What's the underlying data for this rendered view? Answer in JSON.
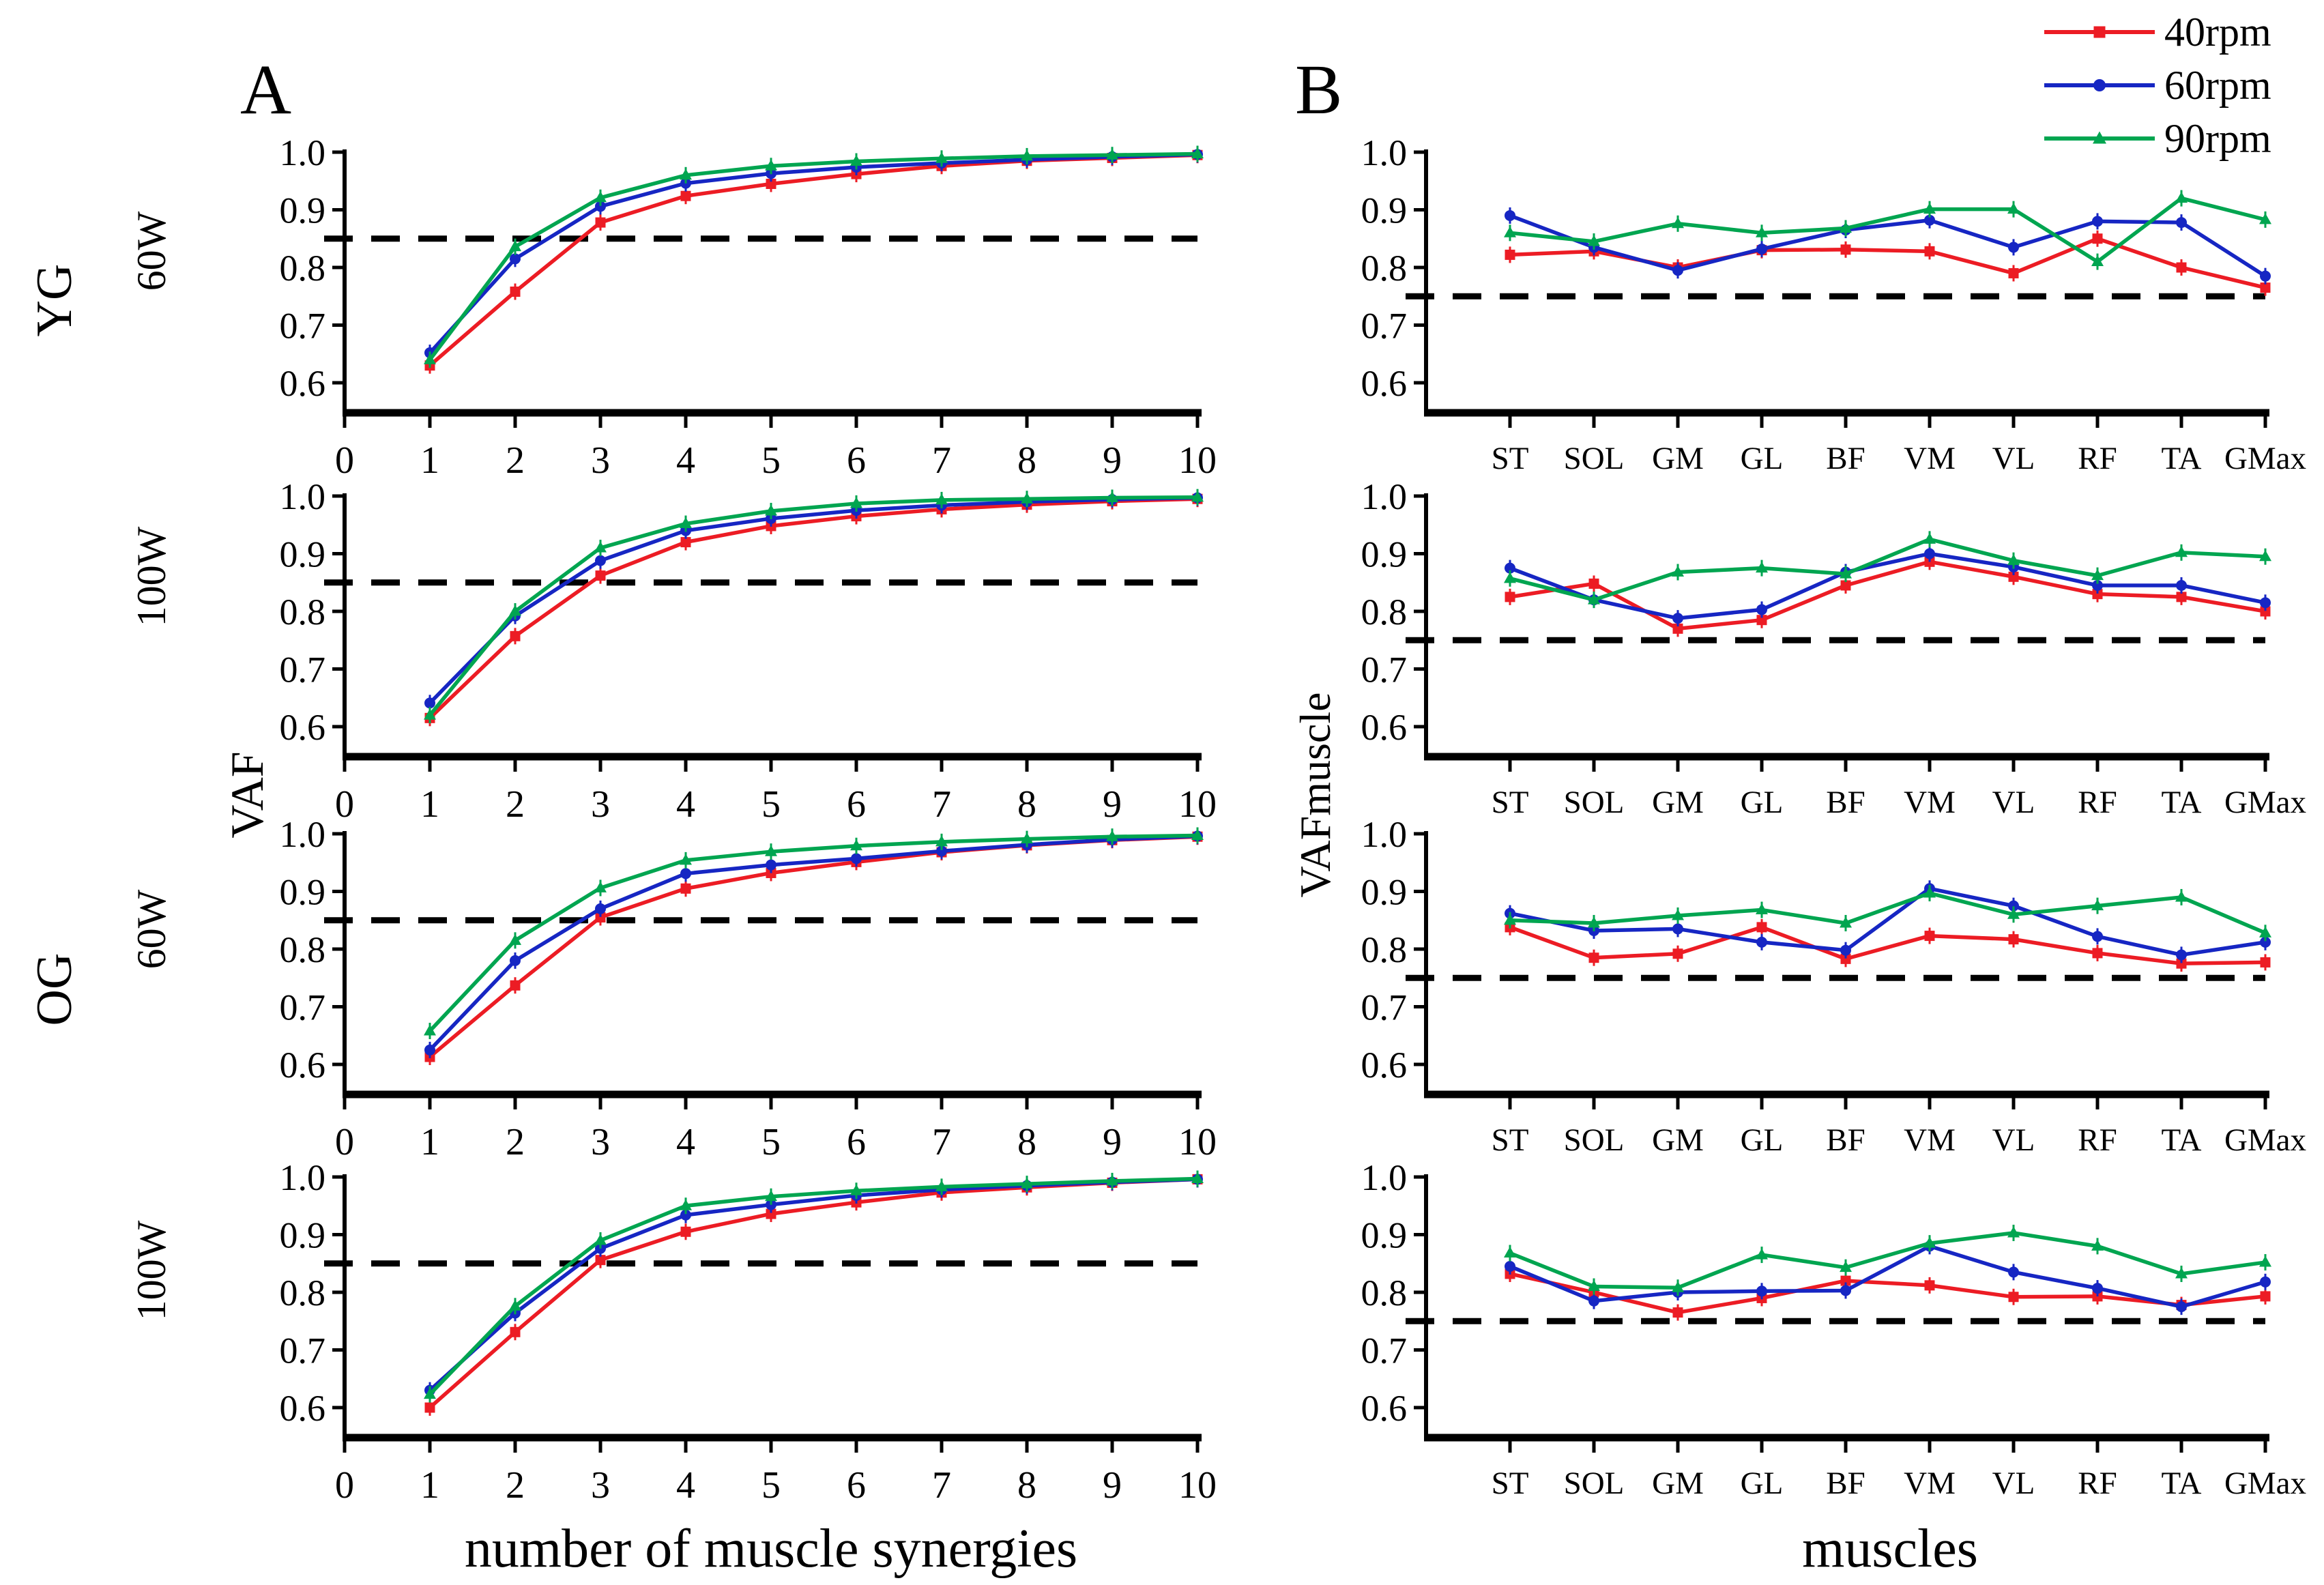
{
  "figure": {
    "panel_a_letter": "A",
    "panel_b_letter": "B",
    "ylabel_a": "VAF",
    "ylabel_b": "VAFmuscle",
    "xlabel_a": "number of muscle synergies",
    "xlabel_b": "muscles",
    "group_labels": [
      "YG",
      "OG"
    ],
    "row_power_labels": [
      "60W",
      "100W",
      "60W",
      "100W"
    ]
  },
  "legend": {
    "items": [
      {
        "label": "40rpm",
        "color": "#ec1c24",
        "marker": "square"
      },
      {
        "label": "60rpm",
        "color": "#1626c3",
        "marker": "circle"
      },
      {
        "label": "90rpm",
        "color": "#00a550",
        "marker": "triangle"
      }
    ]
  },
  "axis": {
    "y_tick_labels": [
      "1.0",
      "0.9",
      "0.8",
      "0.7",
      "0.6"
    ],
    "y_tick_values": [
      1.0,
      0.9,
      0.8,
      0.7,
      0.6
    ]
  },
  "chart_data": [
    {
      "id": "A-YG-60W",
      "panel": "A",
      "row": 0,
      "type": "line",
      "group": "YG",
      "power": "60W",
      "threshold": 0.85,
      "x_tick_labels": [
        "0",
        "1",
        "2",
        "3",
        "4",
        "5",
        "6",
        "7",
        "8",
        "9",
        "10"
      ],
      "xlabel": "number of muscle synergies",
      "ylabel": "VAF",
      "ylim": [
        0.55,
        1.0
      ],
      "series": [
        {
          "name": "40rpm",
          "color": "#ec1c24",
          "marker": "square",
          "values": [
            0.63,
            0.758,
            0.878,
            0.924,
            0.945,
            0.962,
            0.976,
            0.985,
            0.99,
            0.995
          ]
        },
        {
          "name": "60rpm",
          "color": "#1626c3",
          "marker": "circle",
          "values": [
            0.652,
            0.815,
            0.906,
            0.946,
            0.963,
            0.974,
            0.981,
            0.987,
            0.992,
            0.996
          ]
        },
        {
          "name": "90rpm",
          "color": "#00a550",
          "marker": "triangle",
          "values": [
            0.64,
            0.836,
            0.921,
            0.96,
            0.976,
            0.984,
            0.989,
            0.993,
            0.995,
            0.997
          ]
        }
      ]
    },
    {
      "id": "A-YG-100W",
      "panel": "A",
      "row": 1,
      "type": "line",
      "group": "YG",
      "power": "100W",
      "threshold": 0.85,
      "x_tick_labels": [
        "0",
        "1",
        "2",
        "3",
        "4",
        "5",
        "6",
        "7",
        "8",
        "9",
        "10"
      ],
      "xlabel": "number of muscle synergies",
      "ylabel": "VAF",
      "ylim": [
        0.55,
        1.0
      ],
      "series": [
        {
          "name": "40rpm",
          "color": "#ec1c24",
          "marker": "square",
          "values": [
            0.615,
            0.757,
            0.862,
            0.92,
            0.948,
            0.965,
            0.977,
            0.985,
            0.991,
            0.995
          ]
        },
        {
          "name": "60rpm",
          "color": "#1626c3",
          "marker": "circle",
          "values": [
            0.641,
            0.792,
            0.888,
            0.94,
            0.961,
            0.975,
            0.984,
            0.99,
            0.994,
            0.997
          ]
        },
        {
          "name": "90rpm",
          "color": "#00a550",
          "marker": "triangle",
          "values": [
            0.62,
            0.8,
            0.91,
            0.952,
            0.974,
            0.987,
            0.993,
            0.995,
            0.997,
            0.998
          ]
        }
      ]
    },
    {
      "id": "A-OG-60W",
      "panel": "A",
      "row": 2,
      "type": "line",
      "group": "OG",
      "power": "60W",
      "threshold": 0.85,
      "x_tick_labels": [
        "0",
        "1",
        "2",
        "3",
        "4",
        "5",
        "6",
        "7",
        "8",
        "9",
        "10"
      ],
      "xlabel": "number of muscle synergies",
      "ylabel": "VAF",
      "ylim": [
        0.55,
        1.0
      ],
      "series": [
        {
          "name": "40rpm",
          "color": "#ec1c24",
          "marker": "square",
          "values": [
            0.613,
            0.737,
            0.855,
            0.905,
            0.932,
            0.951,
            0.968,
            0.98,
            0.989,
            0.995
          ]
        },
        {
          "name": "60rpm",
          "color": "#1626c3",
          "marker": "circle",
          "values": [
            0.625,
            0.78,
            0.87,
            0.931,
            0.946,
            0.957,
            0.97,
            0.981,
            0.99,
            0.996
          ]
        },
        {
          "name": "90rpm",
          "color": "#00a550",
          "marker": "triangle",
          "values": [
            0.658,
            0.815,
            0.906,
            0.954,
            0.969,
            0.979,
            0.986,
            0.991,
            0.995,
            0.997
          ]
        }
      ]
    },
    {
      "id": "A-OG-100W",
      "panel": "A",
      "row": 3,
      "type": "line",
      "group": "OG",
      "power": "100W",
      "threshold": 0.85,
      "x_tick_labels": [
        "0",
        "1",
        "2",
        "3",
        "4",
        "5",
        "6",
        "7",
        "8",
        "9",
        "10"
      ],
      "xlabel": "number of muscle synergies",
      "ylabel": "VAF",
      "ylim": [
        0.55,
        1.0
      ],
      "series": [
        {
          "name": "40rpm",
          "color": "#ec1c24",
          "marker": "square",
          "values": [
            0.6,
            0.731,
            0.856,
            0.905,
            0.936,
            0.956,
            0.973,
            0.982,
            0.99,
            0.996
          ]
        },
        {
          "name": "60rpm",
          "color": "#1626c3",
          "marker": "circle",
          "values": [
            0.63,
            0.764,
            0.876,
            0.934,
            0.952,
            0.968,
            0.978,
            0.985,
            0.991,
            0.996
          ]
        },
        {
          "name": "90rpm",
          "color": "#00a550",
          "marker": "triangle",
          "values": [
            0.623,
            0.776,
            0.89,
            0.95,
            0.966,
            0.976,
            0.983,
            0.988,
            0.993,
            0.997
          ]
        }
      ]
    },
    {
      "id": "B-YG-60W",
      "panel": "B",
      "row": 0,
      "type": "line",
      "group": "YG",
      "power": "60W",
      "threshold": 0.75,
      "categories": [
        "ST",
        "SOL",
        "GM",
        "GL",
        "BF",
        "VM",
        "VL",
        "RF",
        "TA",
        "GMax"
      ],
      "xlabel": "muscles",
      "ylabel": "VAFmuscle",
      "ylim": [
        0.55,
        1.0
      ],
      "series": [
        {
          "name": "40rpm",
          "color": "#ec1c24",
          "marker": "square",
          "values": [
            0.822,
            0.828,
            0.8,
            0.83,
            0.831,
            0.828,
            0.79,
            0.85,
            0.8,
            0.765
          ]
        },
        {
          "name": "60rpm",
          "color": "#1626c3",
          "marker": "circle",
          "values": [
            0.89,
            0.835,
            0.795,
            0.832,
            0.865,
            0.882,
            0.835,
            0.88,
            0.878,
            0.785
          ]
        },
        {
          "name": "90rpm",
          "color": "#00a550",
          "marker": "triangle",
          "values": [
            0.86,
            0.845,
            0.876,
            0.86,
            0.868,
            0.901,
            0.901,
            0.81,
            0.92,
            0.883
          ]
        }
      ]
    },
    {
      "id": "B-YG-100W",
      "panel": "B",
      "row": 1,
      "type": "line",
      "group": "YG",
      "power": "100W",
      "threshold": 0.75,
      "categories": [
        "ST",
        "SOL",
        "GM",
        "GL",
        "BF",
        "VM",
        "VL",
        "RF",
        "TA",
        "GMax"
      ],
      "xlabel": "muscles",
      "ylabel": "VAFmuscle",
      "ylim": [
        0.55,
        1.0
      ],
      "series": [
        {
          "name": "40rpm",
          "color": "#ec1c24",
          "marker": "square",
          "values": [
            0.825,
            0.848,
            0.77,
            0.785,
            0.845,
            0.886,
            0.86,
            0.83,
            0.825,
            0.8
          ]
        },
        {
          "name": "60rpm",
          "color": "#1626c3",
          "marker": "circle",
          "values": [
            0.875,
            0.82,
            0.788,
            0.803,
            0.868,
            0.9,
            0.877,
            0.845,
            0.845,
            0.815
          ]
        },
        {
          "name": "90rpm",
          "color": "#00a550",
          "marker": "triangle",
          "values": [
            0.857,
            0.82,
            0.868,
            0.875,
            0.865,
            0.925,
            0.888,
            0.862,
            0.902,
            0.895
          ]
        }
      ]
    },
    {
      "id": "B-OG-60W",
      "panel": "B",
      "row": 2,
      "type": "line",
      "group": "OG",
      "power": "60W",
      "threshold": 0.75,
      "categories": [
        "ST",
        "SOL",
        "GM",
        "GL",
        "BF",
        "VM",
        "VL",
        "RF",
        "TA",
        "GMax"
      ],
      "xlabel": "muscles",
      "ylabel": "VAFmuscle",
      "ylim": [
        0.55,
        1.0
      ],
      "series": [
        {
          "name": "40rpm",
          "color": "#ec1c24",
          "marker": "square",
          "values": [
            0.838,
            0.785,
            0.792,
            0.838,
            0.783,
            0.823,
            0.817,
            0.793,
            0.775,
            0.777
          ]
        },
        {
          "name": "60rpm",
          "color": "#1626c3",
          "marker": "circle",
          "values": [
            0.862,
            0.832,
            0.835,
            0.812,
            0.798,
            0.905,
            0.875,
            0.822,
            0.79,
            0.812
          ]
        },
        {
          "name": "90rpm",
          "color": "#00a550",
          "marker": "triangle",
          "values": [
            0.85,
            0.845,
            0.858,
            0.868,
            0.845,
            0.897,
            0.86,
            0.875,
            0.89,
            0.828
          ]
        }
      ]
    },
    {
      "id": "B-OG-100W",
      "panel": "B",
      "row": 3,
      "type": "line",
      "group": "OG",
      "power": "100W",
      "threshold": 0.75,
      "categories": [
        "ST",
        "SOL",
        "GM",
        "GL",
        "BF",
        "VM",
        "VL",
        "RF",
        "TA",
        "GMax"
      ],
      "xlabel": "muscles",
      "ylabel": "VAFmuscle",
      "ylim": [
        0.55,
        1.0
      ],
      "series": [
        {
          "name": "40rpm",
          "color": "#ec1c24",
          "marker": "square",
          "values": [
            0.832,
            0.8,
            0.765,
            0.79,
            0.82,
            0.812,
            0.792,
            0.793,
            0.778,
            0.793
          ]
        },
        {
          "name": "60rpm",
          "color": "#1626c3",
          "marker": "circle",
          "values": [
            0.845,
            0.785,
            0.8,
            0.802,
            0.803,
            0.88,
            0.835,
            0.807,
            0.775,
            0.818
          ]
        },
        {
          "name": "90rpm",
          "color": "#00a550",
          "marker": "triangle",
          "values": [
            0.868,
            0.81,
            0.808,
            0.865,
            0.843,
            0.885,
            0.903,
            0.88,
            0.832,
            0.852
          ]
        }
      ]
    }
  ]
}
